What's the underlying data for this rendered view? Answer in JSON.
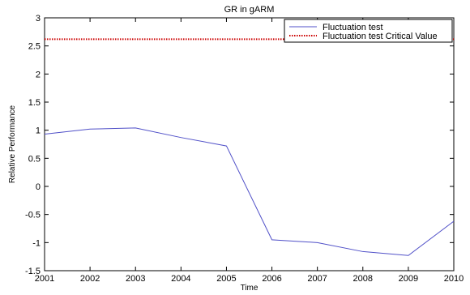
{
  "chart_data": {
    "type": "line",
    "title": "GR in gARM",
    "xlabel": "Time",
    "ylabel": "Relative Performance",
    "xlim": [
      2001,
      2010
    ],
    "ylim": [
      -1.5,
      3
    ],
    "xticks": [
      2001,
      2002,
      2003,
      2004,
      2005,
      2006,
      2007,
      2008,
      2009,
      2010
    ],
    "yticks": [
      -1.5,
      -1,
      -0.5,
      0,
      0.5,
      1,
      1.5,
      2,
      2.5,
      3
    ],
    "grid": false,
    "legend_position": "top-right",
    "series": [
      {
        "name": "Fluctuation test",
        "style": "solid",
        "color": "#5050c8",
        "x": [
          2001,
          2002,
          2003,
          2004,
          2005,
          2006,
          2007,
          2008,
          2009,
          2010
        ],
        "y": [
          0.93,
          1.02,
          1.04,
          0.87,
          0.72,
          -0.95,
          -1.0,
          -1.16,
          -1.23,
          -0.62
        ]
      },
      {
        "name": "Fluctuation test Critical Value",
        "style": "dotted",
        "color": "#cc0000",
        "x": [
          2001,
          2010
        ],
        "y": [
          2.62,
          2.62
        ]
      }
    ]
  }
}
